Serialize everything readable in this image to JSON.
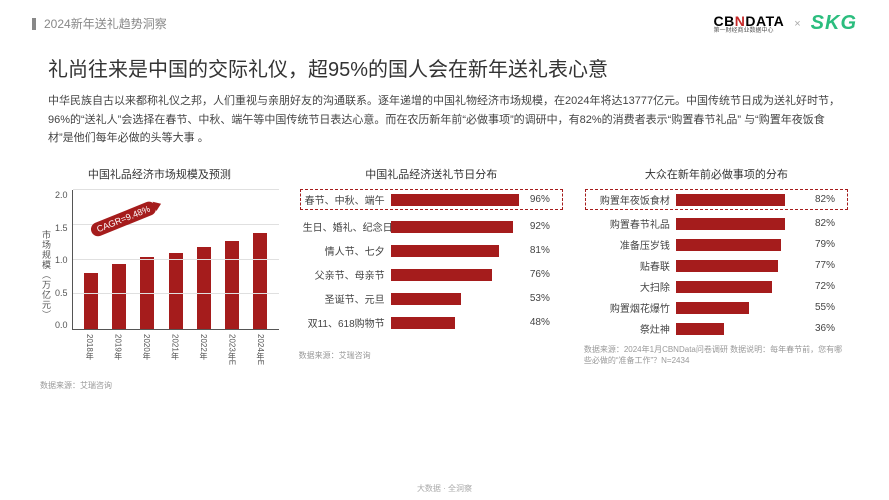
{
  "header": {
    "breadcrumb": "2024新年送礼趋势洞察",
    "logo_cbn_1": "CB",
    "logo_cbn_n": "N",
    "logo_cbn_2": "DATA",
    "logo_cbn_sub": "第一财经商业数据中心",
    "logo_x": "×",
    "logo_skg": "SKG"
  },
  "title": "礼尚往来是中国的交际礼仪，超95%的国人会在新年送礼表心意",
  "desc": "中华民族自古以来都称礼仪之邦，人们重视与亲朋好友的沟通联系。逐年递增的中国礼物经济市场规模，在2024年将达13777亿元。中国传统节日成为送礼好时节，96%的“送礼人”会选择在春节、中秋、端午等中国传统节日表达心意。而在农历新年前“必做事项”的调研中，有82%的消费者表示“购置春节礼品” 与“购置年夜饭食材”是他们每年必做的头等大事 。",
  "chart1": {
    "title": "中国礼品经济市场规模及预测",
    "type": "bar",
    "yaxis_label": "市场规模（万亿元）",
    "ylim": [
      0,
      2.0
    ],
    "yticks": [
      "2.0",
      "1.5",
      "1.0",
      "0.5",
      "0.0"
    ],
    "categories": [
      "2018年",
      "2019年",
      "2020年",
      "2021年",
      "2022年",
      "2023年E",
      "2024年E"
    ],
    "values": [
      0.8,
      0.93,
      1.04,
      1.1,
      1.18,
      1.27,
      1.38
    ],
    "bar_color": "#a51c1c",
    "grid_color": "#e0e0e0",
    "axis_color": "#555555",
    "cagr_label": "CAGR=9.48%",
    "source": "数据来源：艾瑞咨询"
  },
  "chart2": {
    "title": "中国礼品经济送礼节日分布",
    "type": "hbar",
    "max": 100,
    "bar_color": "#a51c1c",
    "highlight_index": 0,
    "items": [
      {
        "label": "春节、中秋、端午",
        "value": 96,
        "val_label": "96%"
      },
      {
        "label": "生日、婚礼、纪念日",
        "value": 92,
        "val_label": "92%"
      },
      {
        "label": "情人节、七夕",
        "value": 81,
        "val_label": "81%"
      },
      {
        "label": "父亲节、母亲节",
        "value": 76,
        "val_label": "76%"
      },
      {
        "label": "圣诞节、元旦",
        "value": 53,
        "val_label": "53%"
      },
      {
        "label": "双11、618购物节",
        "value": 48,
        "val_label": "48%"
      }
    ],
    "source": "数据来源：艾瑞咨询"
  },
  "chart3": {
    "title": "大众在新年前必做事项的分布",
    "type": "hbar",
    "max": 100,
    "bar_color": "#a51c1c",
    "highlight_index": 0,
    "items": [
      {
        "label": "购置年夜饭食材",
        "value": 82,
        "val_label": "82%"
      },
      {
        "label": "购置春节礼品",
        "value": 82,
        "val_label": "82%"
      },
      {
        "label": "准备压岁钱",
        "value": 79,
        "val_label": "79%"
      },
      {
        "label": "贴春联",
        "value": 77,
        "val_label": "77%"
      },
      {
        "label": "大扫除",
        "value": 72,
        "val_label": "72%"
      },
      {
        "label": "购置烟花爆竹",
        "value": 55,
        "val_label": "55%"
      },
      {
        "label": "祭灶神",
        "value": 36,
        "val_label": "36%"
      }
    ],
    "source": "数据来源：2024年1月CBNData问卷调研 数据说明：每年春节前，您有哪些必做的“准备工作”？N=2434"
  },
  "footer": "大数据 · 全洞察"
}
